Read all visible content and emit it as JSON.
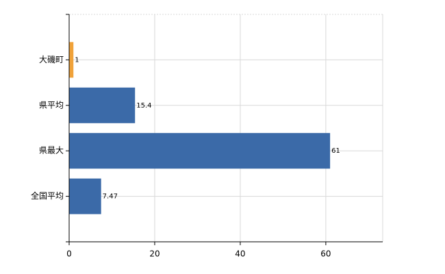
{
  "chart_data": {
    "type": "hbar",
    "categories": [
      "大磯町",
      "県平均",
      "県最大",
      "全国平均"
    ],
    "values": [
      1,
      15.4,
      61,
      7.47
    ],
    "colors": [
      "#f0a23a",
      "#3b6aa8",
      "#3b6aa8",
      "#3b6aa8"
    ],
    "xlim": [
      0,
      73.3
    ],
    "xticks": [
      0,
      20,
      40,
      60
    ],
    "grid": true
  }
}
